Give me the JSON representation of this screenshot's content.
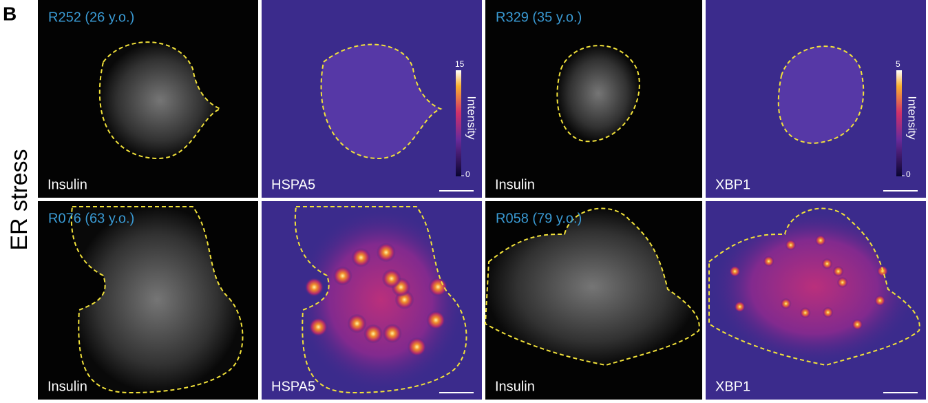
{
  "panel_label": "B",
  "row_label": "ER stress",
  "rows": [
    {
      "panels": [
        {
          "donor": "R252 (26 y.o.)",
          "stain": "Insulin"
        },
        {
          "stain": "HSPA5"
        },
        {
          "donor": "R329 (35 y.o.)",
          "stain": "Insulin"
        },
        {
          "stain": "XBP1"
        }
      ]
    },
    {
      "panels": [
        {
          "donor": "R076 (63 y.o.)",
          "stain": "Insulin"
        },
        {
          "stain": "HSPA5"
        },
        {
          "donor": "R058 (79 y.o.)",
          "stain": "Insulin"
        },
        {
          "stain": "XBP1"
        }
      ]
    }
  ],
  "colorbars": [
    {
      "label": "Intensity",
      "max": 15,
      "min": 0
    },
    {
      "label": "Intensity",
      "max": 5,
      "min": 0
    }
  ]
}
